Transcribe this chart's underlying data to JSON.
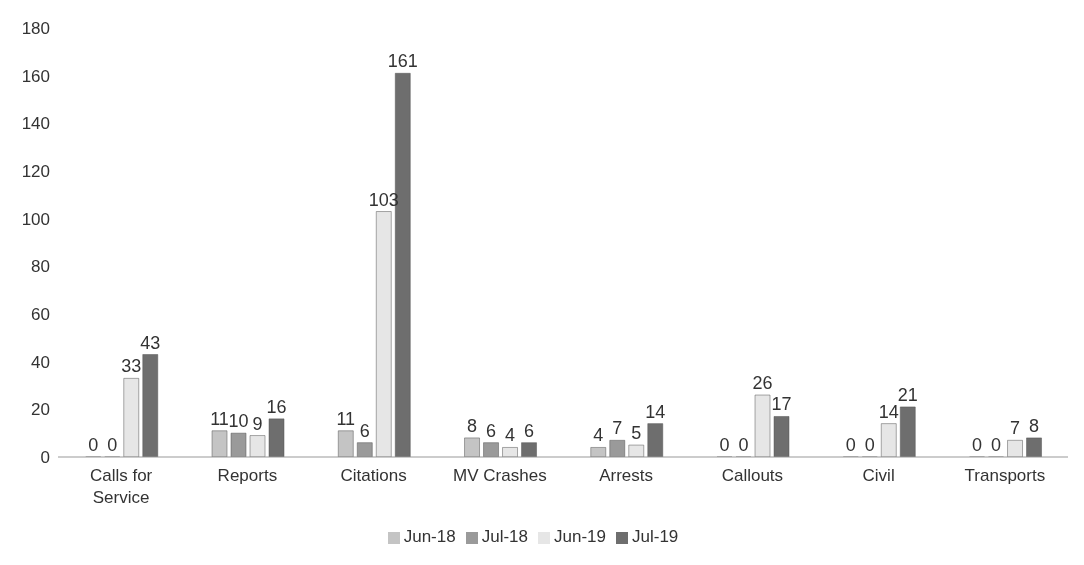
{
  "chart_data": {
    "type": "bar",
    "categories": [
      "Calls for Service",
      "Reports",
      "Citations",
      "MV Crashes",
      "Arrests",
      "Callouts",
      "Civil",
      "Transports"
    ],
    "series": [
      {
        "name": "Jun-18",
        "color": "#c4c4c4",
        "values": [
          0,
          11,
          11,
          8,
          4,
          0,
          0,
          0
        ]
      },
      {
        "name": "Jul-18",
        "color": "#9a9a9a",
        "values": [
          0,
          10,
          6,
          6,
          7,
          0,
          0,
          0
        ]
      },
      {
        "name": "Jun-19",
        "color": "#e6e6e6",
        "values": [
          33,
          9,
          103,
          4,
          5,
          26,
          14,
          7
        ]
      },
      {
        "name": "Jul-19",
        "color": "#6e6e6e",
        "values": [
          43,
          16,
          161,
          6,
          14,
          17,
          21,
          8
        ]
      }
    ],
    "ylim": [
      0,
      180
    ],
    "yticks": [
      0,
      20,
      40,
      60,
      80,
      100,
      120,
      140,
      160,
      180
    ],
    "data_labels": true,
    "legend": "bottom",
    "grid": false
  }
}
